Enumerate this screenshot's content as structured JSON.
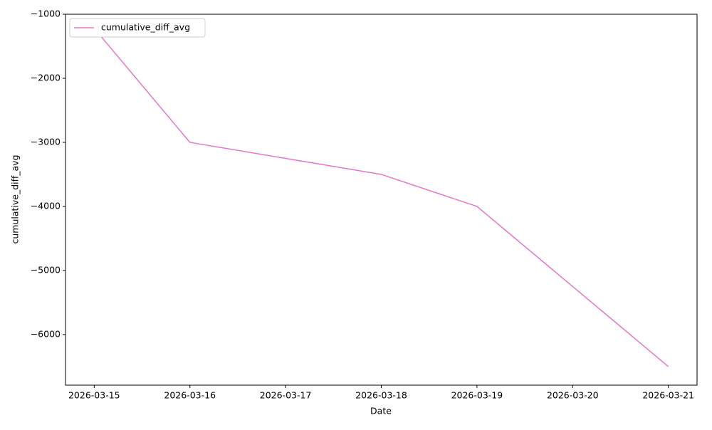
{
  "chart_data": {
    "type": "line",
    "x_label": "Date",
    "y_label": "cumulative_diff_avg",
    "x": [
      "2026-03-15",
      "2026-03-16",
      "2026-03-17",
      "2026-03-18",
      "2026-03-19",
      "2026-03-20",
      "2026-03-21"
    ],
    "series": [
      {
        "name": "cumulative_diff_avg",
        "color": "#e377c2",
        "values": [
          -1220,
          -3000,
          -3250,
          -3500,
          -4000,
          -5250,
          -6500
        ]
      }
    ],
    "xlim": [
      "2026-03-14T16:48",
      "2026-03-21T07:12"
    ],
    "xticks": [
      "2026-03-15",
      "2026-03-16",
      "2026-03-17",
      "2026-03-18",
      "2026-03-19",
      "2026-03-20",
      "2026-03-21"
    ],
    "ylim": [
      -6790,
      -1000
    ],
    "yticks": [
      {
        "value": -6000,
        "label": "−6000"
      },
      {
        "value": -5000,
        "label": "−5000"
      },
      {
        "value": -4000,
        "label": "−4000"
      },
      {
        "value": -3000,
        "label": "−3000"
      },
      {
        "value": -2000,
        "label": "−2000"
      },
      {
        "value": -1000,
        "label": "−1000"
      }
    ],
    "legend": "upper left",
    "grid": false
  }
}
